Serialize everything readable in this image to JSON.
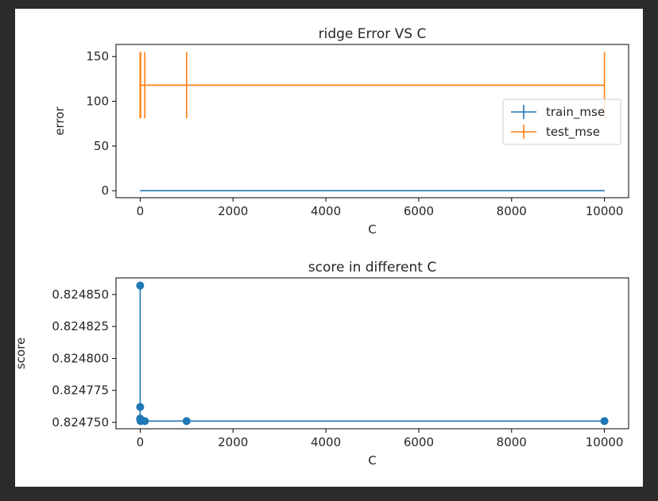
{
  "figure": {
    "background": "#ffffff",
    "page_background": "#2b2b2b"
  },
  "chart_data": [
    {
      "type": "line",
      "title": "ridge Error VS C",
      "xlabel": "C",
      "ylabel": "error",
      "xlim": [
        -520,
        10520
      ],
      "ylim": [
        -7.8,
        163.5
      ],
      "xticks": [
        0,
        2000,
        4000,
        6000,
        8000,
        10000
      ],
      "yticks": [
        0,
        50,
        100,
        150
      ],
      "grid": false,
      "legend_position": "center-right",
      "series": [
        {
          "name": "train_mse",
          "color": "#1f77b4",
          "style": "errorbar",
          "x": [
            0.001,
            0.01,
            0.1,
            1,
            10,
            100,
            1000,
            10000
          ],
          "y": [
            0.0,
            0.0,
            0.0,
            0.0,
            0.0,
            0.0,
            0.0,
            0.0
          ],
          "yerr": [
            0.2,
            0.2,
            0.2,
            0.2,
            0.2,
            0.2,
            0.2,
            0.2
          ]
        },
        {
          "name": "test_mse",
          "color": "#ff7f0e",
          "style": "errorbar",
          "x": [
            0.001,
            0.01,
            0.1,
            1,
            10,
            100,
            1000,
            10000
          ],
          "y": [
            118,
            118,
            118,
            118,
            118,
            118,
            118,
            118
          ],
          "yerr": [
            37,
            37,
            37,
            37,
            37,
            37,
            37,
            37
          ]
        }
      ]
    },
    {
      "type": "line",
      "title": "score in different C",
      "xlabel": "C",
      "ylabel": "score",
      "xlim": [
        -520,
        10520
      ],
      "ylim": [
        0.824745,
        0.824863
      ],
      "xticks": [
        0,
        2000,
        4000,
        6000,
        8000,
        10000
      ],
      "yticks": [
        0.82475,
        0.824775,
        0.8248,
        0.824825,
        0.82485
      ],
      "ytick_labels": [
        "0.824750",
        "0.824775",
        "0.824800",
        "0.824825",
        "0.824850"
      ],
      "grid": false,
      "series": [
        {
          "color": "#1f77b4",
          "marker": "o",
          "x": [
            0.001,
            0.01,
            0.1,
            1,
            10,
            100,
            1000,
            10000
          ],
          "y": [
            0.824857,
            0.824762,
            0.824753,
            0.824752,
            0.824751,
            0.824751,
            0.824751,
            0.824751
          ]
        }
      ]
    }
  ]
}
